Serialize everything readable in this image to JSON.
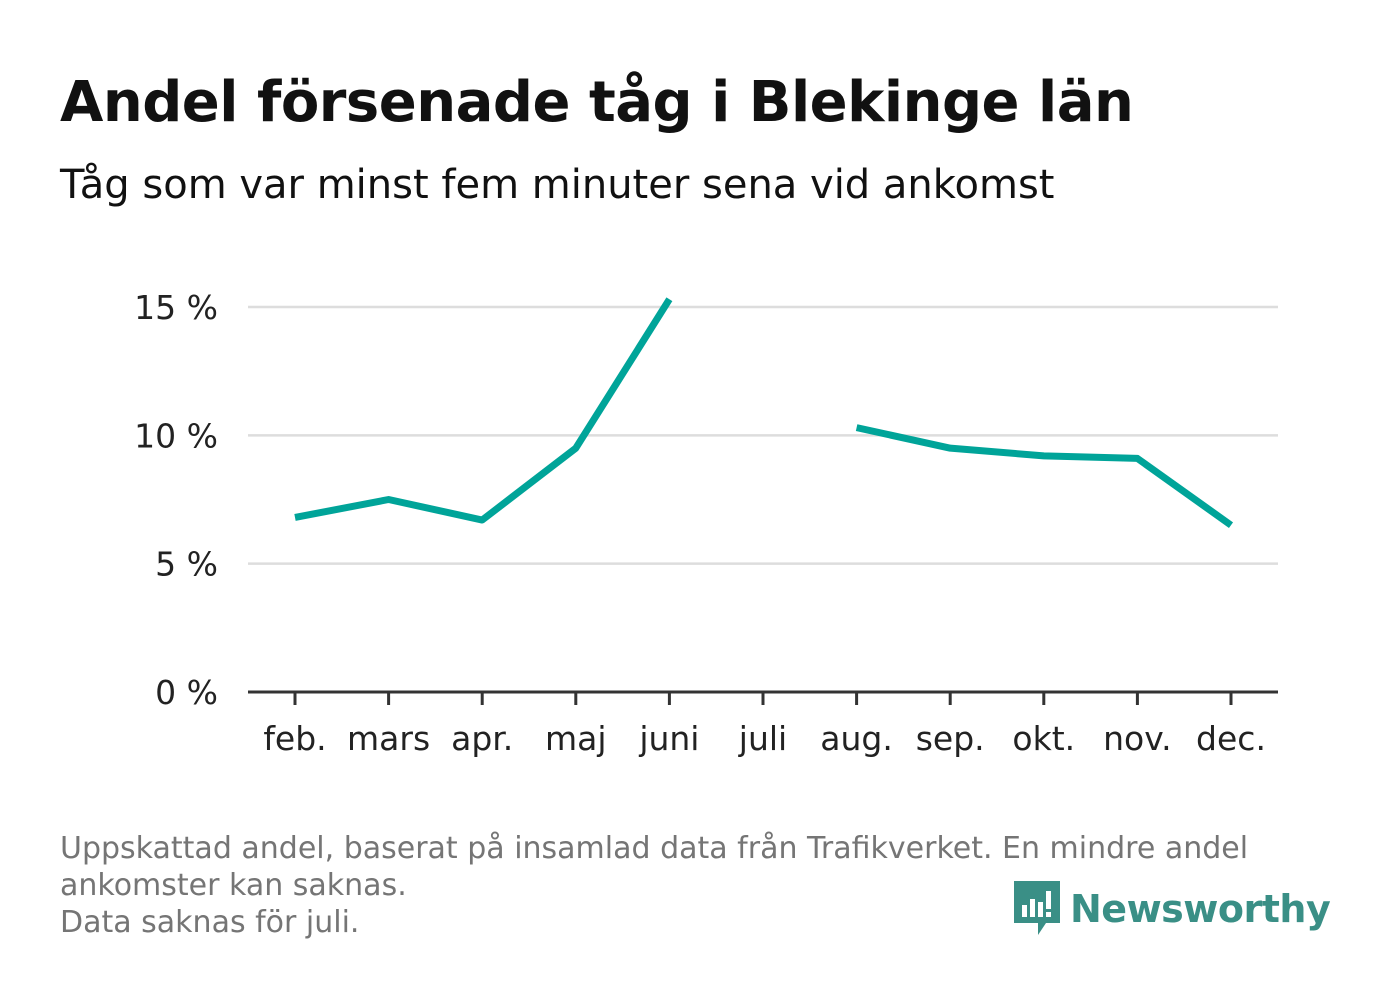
{
  "header": {
    "title": "Andel försenade tåg i Blekinge län",
    "subtitle": "Tåg som var minst fem minuter sena vid ankomst"
  },
  "chart_data": {
    "type": "line",
    "categories": [
      "feb.",
      "mars",
      "apr.",
      "maj",
      "juni",
      "juli",
      "aug.",
      "sep.",
      "okt.",
      "nov.",
      "dec."
    ],
    "series": [
      {
        "values": [
          6.8,
          7.5,
          6.7,
          9.5,
          15.3,
          null,
          10.3,
          9.5,
          9.2,
          9.1,
          6.5
        ]
      }
    ],
    "yticks": [
      0,
      5,
      10,
      15
    ],
    "ytick_labels": [
      "0 %",
      "5 %",
      "10 %",
      "15 %"
    ],
    "ylim": [
      0,
      15
    ],
    "grid": true,
    "line_color": "#00a499"
  },
  "footnote": {
    "lines": [
      "Uppskattad andel, baserat på insamlad data från Trafikverket. En mindre andel",
      "ankomster kan saknas.",
      "Data saknas för juli."
    ]
  },
  "logo": {
    "name": "Newsworthy",
    "icon": "newsworthy-logo-icon",
    "color": "#3a8f86"
  }
}
